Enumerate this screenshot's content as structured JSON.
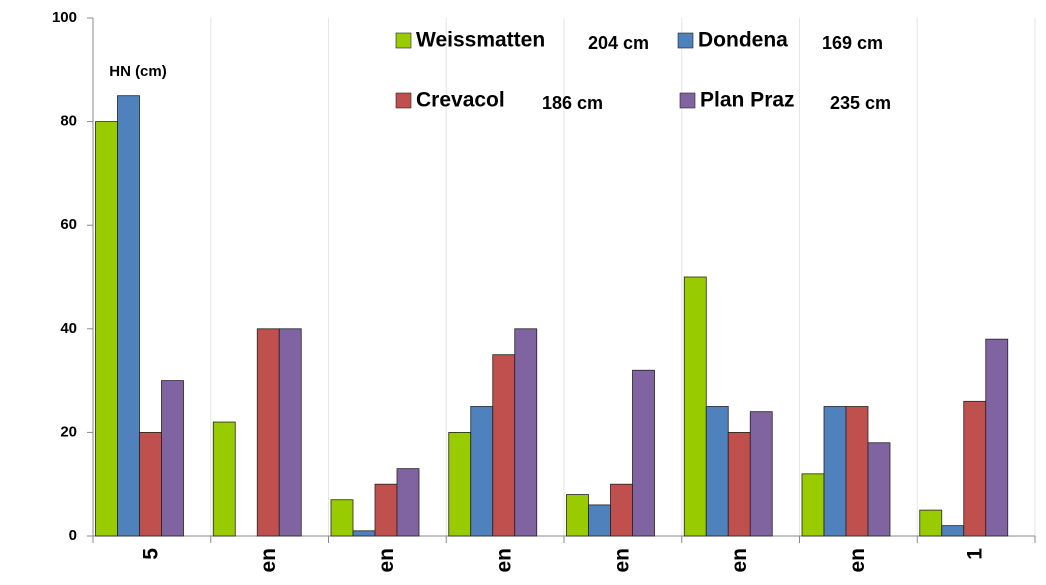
{
  "chart_data": {
    "type": "bar",
    "y_label": "HN (cm)",
    "categories": [
      "5",
      "en",
      "en",
      "en",
      "en",
      "en",
      "en",
      "1"
    ],
    "series": [
      {
        "name": "Weissmatten",
        "annotation": "204 cm",
        "color": "#99cc00",
        "values": [
          80,
          22,
          7,
          20,
          8,
          50,
          12,
          5
        ]
      },
      {
        "name": "Dondena",
        "annotation": "169 cm",
        "color": "#4f81bd",
        "values": [
          85,
          null,
          1,
          25,
          6,
          25,
          25,
          2
        ]
      },
      {
        "name": "Crevacol",
        "annotation": "186 cm",
        "color": "#c0504d",
        "values": [
          20,
          40,
          10,
          35,
          10,
          20,
          25,
          26
        ]
      },
      {
        "name": "Plan Praz",
        "annotation": "235 cm",
        "color": "#8064a2",
        "values": [
          30,
          40,
          13,
          40,
          32,
          24,
          18,
          38
        ]
      }
    ],
    "ylim": [
      0,
      100
    ],
    "yticks": [
      0,
      20,
      40,
      60,
      80,
      100
    ],
    "grid": true
  }
}
